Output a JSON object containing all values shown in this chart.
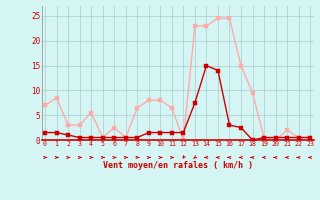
{
  "x": [
    0,
    1,
    2,
    3,
    4,
    5,
    6,
    7,
    8,
    9,
    10,
    11,
    12,
    13,
    14,
    15,
    16,
    17,
    18,
    19,
    20,
    21,
    22,
    23
  ],
  "avg_wind": [
    1.5,
    1.5,
    1.0,
    0.5,
    0.5,
    0.5,
    0.5,
    0.5,
    0.5,
    1.5,
    1.5,
    1.5,
    1.5,
    7.5,
    15.0,
    14.0,
    3.0,
    2.5,
    0.0,
    0.5,
    0.5,
    0.5,
    0.5,
    0.5
  ],
  "gusts": [
    7.0,
    8.5,
    3.0,
    3.0,
    5.5,
    0.5,
    2.5,
    0.5,
    6.5,
    8.0,
    8.0,
    6.5,
    0.0,
    23.0,
    23.0,
    24.5,
    24.5,
    15.0,
    9.5,
    0.5,
    0.0,
    2.0,
    0.5,
    0.5
  ],
  "avg_color": "#cc0000",
  "gust_color": "#ffaaaa",
  "bg_color": "#d5f5f5",
  "grid_color": "#aacccc",
  "xlabel": "Vent moyen/en rafales ( km/h )",
  "xlabel_color": "#cc0000",
  "ylabel_vals": [
    0,
    5,
    10,
    15,
    20,
    25
  ],
  "ylim": [
    0,
    27
  ],
  "xlim": [
    -0.3,
    23.3
  ],
  "linewidth": 1.0,
  "arrow_angles_deg": [
    90,
    90,
    90,
    90,
    90,
    90,
    90,
    90,
    90,
    90,
    90,
    90,
    210,
    225,
    270,
    270,
    270,
    270,
    270,
    270,
    270,
    270,
    270,
    270
  ]
}
